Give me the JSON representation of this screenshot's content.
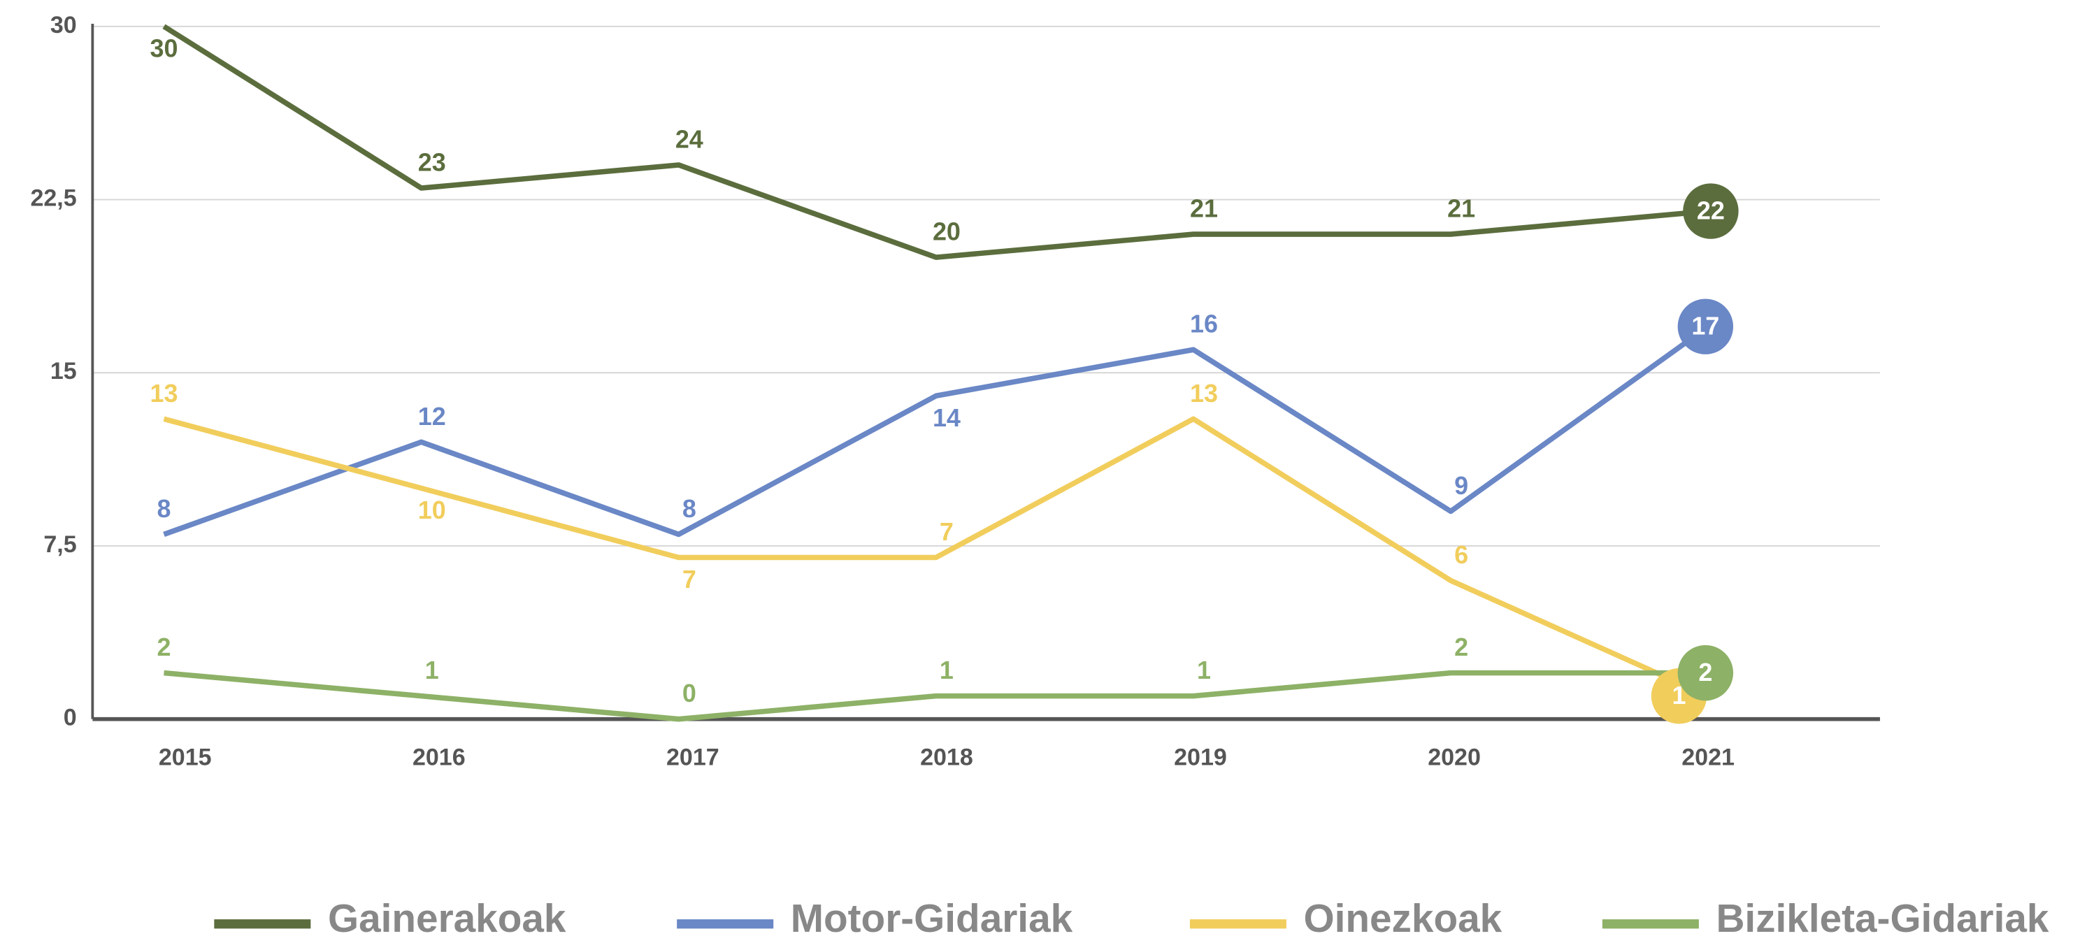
{
  "chart_data": {
    "type": "line",
    "categories": [
      "2015",
      "2016",
      "2017",
      "2018",
      "2019",
      "2020",
      "2021"
    ],
    "series": [
      {
        "name": "Gainerakoak",
        "color": "#5b6d3d",
        "values": [
          30,
          23,
          24,
          20,
          21,
          21,
          22
        ]
      },
      {
        "name": "Motor-Gidariak",
        "color": "#6a87c6",
        "values": [
          8,
          12,
          8,
          14,
          16,
          9,
          17
        ]
      },
      {
        "name": "Oinezkoak",
        "color": "#f1cd5c",
        "values": [
          13,
          10,
          7,
          7,
          13,
          6,
          1
        ]
      },
      {
        "name": "Bizikleta-Gidariak",
        "color": "#8db166",
        "values": [
          2,
          1,
          0,
          1,
          1,
          2,
          2
        ]
      }
    ],
    "ylim": [
      0,
      30
    ],
    "yticks": [
      0,
      {
        "value": 7.5,
        "label": "7,5"
      },
      15,
      {
        "value": 22.5,
        "label": "22,5"
      },
      30
    ],
    "grid": true,
    "legend": "bottom"
  }
}
